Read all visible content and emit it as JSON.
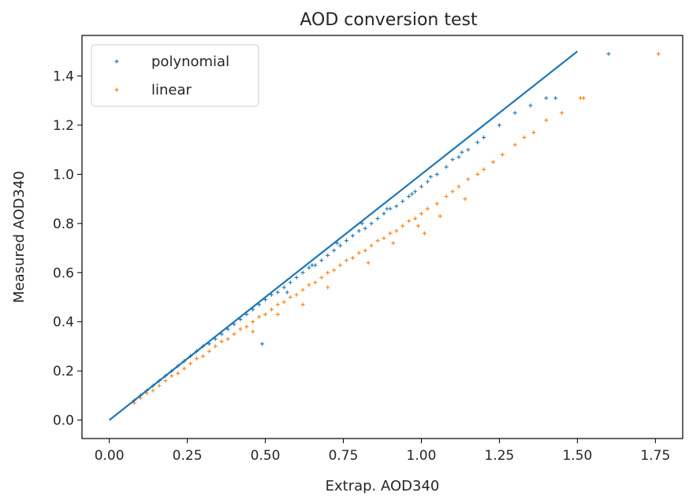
{
  "chart_data": {
    "type": "scatter",
    "title": "AOD conversion test",
    "xlabel": "Extrap. AOD340",
    "ylabel": "Measured AOD340",
    "xlim": [
      -0.0875,
      1.8375
    ],
    "ylim": [
      -0.075,
      1.565
    ],
    "x_ticks": [
      0.0,
      0.25,
      0.5,
      0.75,
      1.0,
      1.25,
      1.5,
      1.75
    ],
    "x_tick_labels": [
      "0.00",
      "0.25",
      "0.50",
      "0.75",
      "1.00",
      "1.25",
      "1.50",
      "1.75"
    ],
    "y_ticks": [
      0.0,
      0.2,
      0.4,
      0.6,
      0.8,
      1.0,
      1.2,
      1.4
    ],
    "y_tick_labels": [
      "0.0",
      "0.2",
      "0.4",
      "0.6",
      "0.8",
      "1.0",
      "1.2",
      "1.4"
    ],
    "grid": false,
    "legend_position": "top-left",
    "reference_line": {
      "x": [
        0.0,
        1.5
      ],
      "y": [
        0.0,
        1.5
      ],
      "color": "#1f77b4"
    },
    "series": [
      {
        "name": "polynomial",
        "color": "#1f77b4",
        "marker": "+",
        "points": [
          [
            0.08,
            0.08
          ],
          [
            0.1,
            0.1
          ],
          [
            0.12,
            0.12
          ],
          [
            0.14,
            0.14
          ],
          [
            0.16,
            0.16
          ],
          [
            0.18,
            0.18
          ],
          [
            0.2,
            0.2
          ],
          [
            0.22,
            0.22
          ],
          [
            0.24,
            0.24
          ],
          [
            0.26,
            0.26
          ],
          [
            0.28,
            0.28
          ],
          [
            0.3,
            0.3
          ],
          [
            0.32,
            0.31
          ],
          [
            0.34,
            0.33
          ],
          [
            0.36,
            0.35
          ],
          [
            0.38,
            0.37
          ],
          [
            0.4,
            0.39
          ],
          [
            0.42,
            0.41
          ],
          [
            0.44,
            0.43
          ],
          [
            0.46,
            0.45
          ],
          [
            0.48,
            0.47
          ],
          [
            0.5,
            0.49
          ],
          [
            0.52,
            0.51
          ],
          [
            0.54,
            0.52
          ],
          [
            0.56,
            0.54
          ],
          [
            0.58,
            0.56
          ],
          [
            0.6,
            0.58
          ],
          [
            0.62,
            0.6
          ],
          [
            0.64,
            0.62
          ],
          [
            0.66,
            0.63
          ],
          [
            0.68,
            0.65
          ],
          [
            0.7,
            0.67
          ],
          [
            0.72,
            0.69
          ],
          [
            0.74,
            0.71
          ],
          [
            0.76,
            0.73
          ],
          [
            0.78,
            0.75
          ],
          [
            0.8,
            0.77
          ],
          [
            0.82,
            0.78
          ],
          [
            0.84,
            0.8
          ],
          [
            0.86,
            0.82
          ],
          [
            0.88,
            0.84
          ],
          [
            0.9,
            0.86
          ],
          [
            0.92,
            0.87
          ],
          [
            0.94,
            0.89
          ],
          [
            0.96,
            0.91
          ],
          [
            0.98,
            0.93
          ],
          [
            1.0,
            0.95
          ],
          [
            1.02,
            0.97
          ],
          [
            1.05,
            1.0
          ],
          [
            1.08,
            1.03
          ],
          [
            1.1,
            1.06
          ],
          [
            1.12,
            1.07
          ],
          [
            1.15,
            1.1
          ],
          [
            1.18,
            1.13
          ],
          [
            1.2,
            1.15
          ],
          [
            1.25,
            1.2
          ],
          [
            1.3,
            1.25
          ],
          [
            1.35,
            1.28
          ],
          [
            1.4,
            1.31
          ],
          [
            1.43,
            1.31
          ],
          [
            1.6,
            1.49
          ],
          [
            0.49,
            0.31
          ],
          [
            0.57,
            0.52
          ],
          [
            0.65,
            0.63
          ],
          [
            0.73,
            0.72
          ],
          [
            0.81,
            0.8
          ],
          [
            0.89,
            0.86
          ],
          [
            0.97,
            0.92
          ],
          [
            1.03,
            0.99
          ],
          [
            1.13,
            1.09
          ]
        ]
      },
      {
        "name": "linear",
        "color": "#ff7f0e",
        "marker": "+",
        "points": [
          [
            0.08,
            0.07
          ],
          [
            0.1,
            0.09
          ],
          [
            0.12,
            0.11
          ],
          [
            0.14,
            0.12
          ],
          [
            0.16,
            0.14
          ],
          [
            0.18,
            0.16
          ],
          [
            0.2,
            0.18
          ],
          [
            0.22,
            0.19
          ],
          [
            0.24,
            0.21
          ],
          [
            0.26,
            0.23
          ],
          [
            0.28,
            0.25
          ],
          [
            0.3,
            0.26
          ],
          [
            0.32,
            0.28
          ],
          [
            0.34,
            0.3
          ],
          [
            0.36,
            0.32
          ],
          [
            0.38,
            0.33
          ],
          [
            0.4,
            0.35
          ],
          [
            0.42,
            0.37
          ],
          [
            0.44,
            0.38
          ],
          [
            0.46,
            0.4
          ],
          [
            0.48,
            0.42
          ],
          [
            0.5,
            0.43
          ],
          [
            0.52,
            0.45
          ],
          [
            0.54,
            0.47
          ],
          [
            0.56,
            0.48
          ],
          [
            0.58,
            0.5
          ],
          [
            0.6,
            0.51
          ],
          [
            0.62,
            0.53
          ],
          [
            0.64,
            0.55
          ],
          [
            0.66,
            0.56
          ],
          [
            0.68,
            0.58
          ],
          [
            0.7,
            0.6
          ],
          [
            0.72,
            0.61
          ],
          [
            0.74,
            0.63
          ],
          [
            0.76,
            0.65
          ],
          [
            0.78,
            0.66
          ],
          [
            0.8,
            0.68
          ],
          [
            0.82,
            0.69
          ],
          [
            0.84,
            0.71
          ],
          [
            0.86,
            0.73
          ],
          [
            0.88,
            0.74
          ],
          [
            0.9,
            0.76
          ],
          [
            0.92,
            0.77
          ],
          [
            0.94,
            0.79
          ],
          [
            0.96,
            0.81
          ],
          [
            0.98,
            0.82
          ],
          [
            1.0,
            0.84
          ],
          [
            1.02,
            0.86
          ],
          [
            1.05,
            0.88
          ],
          [
            1.08,
            0.91
          ],
          [
            1.1,
            0.93
          ],
          [
            1.12,
            0.95
          ],
          [
            1.15,
            0.98
          ],
          [
            1.18,
            1.0
          ],
          [
            1.2,
            1.02
          ],
          [
            1.23,
            1.05
          ],
          [
            1.26,
            1.08
          ],
          [
            1.3,
            1.12
          ],
          [
            1.33,
            1.15
          ],
          [
            1.36,
            1.17
          ],
          [
            1.4,
            1.22
          ],
          [
            1.45,
            1.25
          ],
          [
            1.51,
            1.31
          ],
          [
            1.52,
            1.31
          ],
          [
            1.76,
            1.49
          ],
          [
            0.62,
            0.47
          ],
          [
            0.7,
            0.54
          ],
          [
            0.83,
            0.64
          ],
          [
            0.91,
            0.72
          ],
          [
            0.99,
            0.79
          ],
          [
            1.01,
            0.76
          ],
          [
            1.06,
            0.83
          ],
          [
            1.14,
            0.9
          ],
          [
            0.46,
            0.36
          ],
          [
            0.54,
            0.43
          ]
        ]
      }
    ]
  }
}
